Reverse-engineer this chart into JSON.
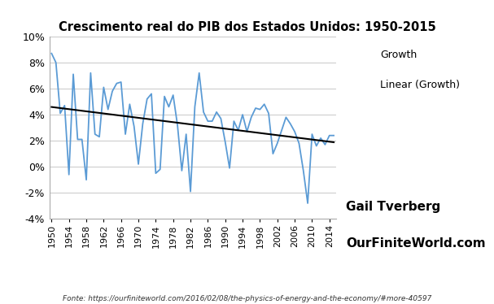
{
  "title": "Crescimento real do PIB dos Estados Unidos: 1950-2015",
  "years": [
    1950,
    1951,
    1952,
    1953,
    1954,
    1955,
    1956,
    1957,
    1958,
    1959,
    1960,
    1961,
    1962,
    1963,
    1964,
    1965,
    1966,
    1967,
    1968,
    1969,
    1970,
    1971,
    1972,
    1973,
    1974,
    1975,
    1976,
    1977,
    1978,
    1979,
    1980,
    1981,
    1982,
    1983,
    1984,
    1985,
    1986,
    1987,
    1988,
    1989,
    1990,
    1991,
    1992,
    1993,
    1994,
    1995,
    1996,
    1997,
    1998,
    1999,
    2000,
    2001,
    2002,
    2003,
    2004,
    2005,
    2006,
    2007,
    2008,
    2009,
    2010,
    2011,
    2012,
    2013,
    2014,
    2015
  ],
  "growth": [
    8.7,
    8.0,
    4.1,
    4.7,
    -0.6,
    7.1,
    2.1,
    2.1,
    -1.0,
    7.2,
    2.5,
    2.3,
    6.1,
    4.4,
    5.8,
    6.4,
    6.5,
    2.5,
    4.8,
    3.1,
    0.2,
    3.3,
    5.2,
    5.6,
    -0.5,
    -0.2,
    5.4,
    4.6,
    5.5,
    3.2,
    -0.3,
    2.5,
    -1.9,
    4.6,
    7.2,
    4.2,
    3.5,
    3.5,
    4.2,
    3.7,
    1.9,
    -0.1,
    3.5,
    2.8,
    4.0,
    2.7,
    3.8,
    4.5,
    4.4,
    4.8,
    4.1,
    1.0,
    1.8,
    2.8,
    3.8,
    3.3,
    2.7,
    1.8,
    -0.3,
    -2.8,
    2.5,
    1.6,
    2.2,
    1.7,
    2.4,
    2.4
  ],
  "line_color": "#5b9bd5",
  "trend_color": "#000000",
  "background_color": "#ffffff",
  "grid_color": "#c8c8c8",
  "ylim": [
    -4,
    10
  ],
  "yticks": [
    -4,
    -2,
    0,
    2,
    4,
    6,
    8,
    10
  ],
  "legend_labels": [
    "Growth",
    "Linear (Growth)"
  ],
  "source_text": "Fonte: https://ourfiniteworld.com/2016/02/08/the-physics-of-energy-and-the-economy/#more-40597",
  "watermark_line1": "Gail Tverberg",
  "watermark_line2": "OurFiniteWorld.com"
}
